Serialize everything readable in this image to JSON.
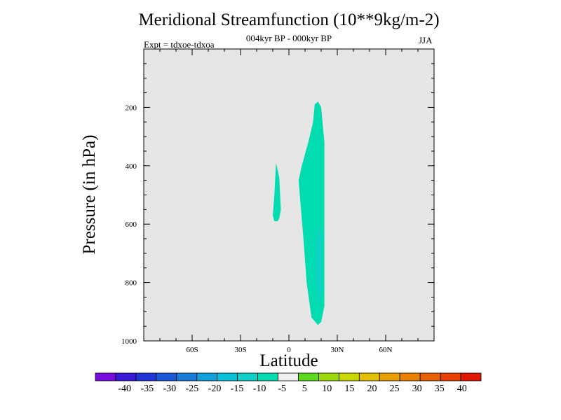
{
  "chart_data": {
    "type": "contour",
    "title": "Meridional Streamfunction (10**9kg/m-2)",
    "subtitle": "004kyr BP - 000kyr BP",
    "annotation_left": "Expt = tdxoe-tdxoa",
    "annotation_right": "JJA",
    "xlabel": "Latitude",
    "ylabel": "Pressure (in hPa)",
    "xlim": [
      -90,
      90
    ],
    "ylim": [
      1000,
      0
    ],
    "x_ticks": [
      {
        "value": -60,
        "label": "60S"
      },
      {
        "value": -30,
        "label": "30S"
      },
      {
        "value": 0,
        "label": "0"
      },
      {
        "value": 30,
        "label": "30N"
      },
      {
        "value": 60,
        "label": "60N"
      }
    ],
    "y_ticks": [
      {
        "value": 200,
        "label": "200"
      },
      {
        "value": 400,
        "label": "400"
      },
      {
        "value": 600,
        "label": "600"
      },
      {
        "value": 800,
        "label": "800"
      },
      {
        "value": 1000,
        "label": "1000"
      }
    ],
    "background_color": "#e6e6e6",
    "contour_levels": [
      -40,
      -35,
      -30,
      -25,
      -20,
      -15,
      -10,
      -5,
      5,
      10,
      15,
      20,
      25,
      30,
      35,
      40
    ],
    "colorbar_colors": [
      "#7a0ce0",
      "#3a18d8",
      "#2036d8",
      "#1c58d8",
      "#1a7ed8",
      "#10a0dc",
      "#08c0d8",
      "#10d0c8",
      "#00dcb0",
      "#f0f0f0",
      "#5cd820",
      "#9cd808",
      "#c8d800",
      "#e0c000",
      "#e8a000",
      "#e88000",
      "#e86000",
      "#e84000",
      "#e01800"
    ],
    "regions": [
      {
        "name": "negative-cell-main",
        "level_range": [
          -10,
          -5
        ],
        "color": "#00dcb0",
        "polygon": [
          [
            16,
            190
          ],
          [
            18,
            180
          ],
          [
            20,
            200
          ],
          [
            22,
            320
          ],
          [
            22,
            880
          ],
          [
            20,
            935
          ],
          [
            18,
            945
          ],
          [
            14,
            920
          ],
          [
            11,
            800
          ],
          [
            9,
            650
          ],
          [
            6,
            450
          ],
          [
            8,
            400
          ],
          [
            12,
            320
          ],
          [
            15,
            250
          ]
        ]
      },
      {
        "name": "negative-cell-core",
        "level_range": [
          -15,
          -10
        ],
        "color": "#10d0c8",
        "polygon": [
          [
            18,
            600
          ],
          [
            20,
            650
          ],
          [
            20,
            840
          ],
          [
            18,
            870
          ],
          [
            17,
            790
          ],
          [
            17,
            680
          ]
        ]
      },
      {
        "name": "negative-cell-small",
        "level_range": [
          -10,
          -5
        ],
        "color": "#00dcb0",
        "polygon": [
          [
            -8,
            390
          ],
          [
            -6,
            440
          ],
          [
            -5,
            550
          ],
          [
            -6,
            580
          ],
          [
            -7,
            590
          ],
          [
            -9,
            590
          ],
          [
            -10,
            570
          ],
          [
            -9,
            500
          ]
        ]
      }
    ]
  }
}
